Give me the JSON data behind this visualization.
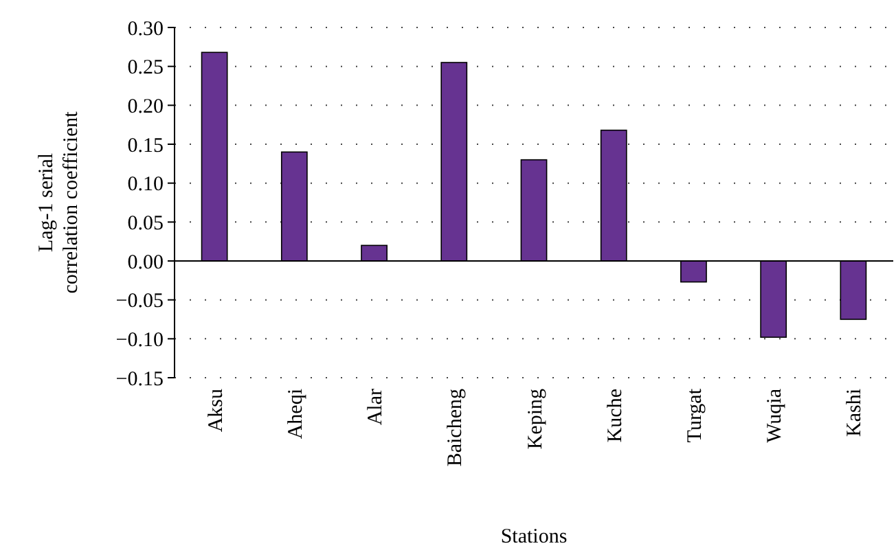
{
  "chart_data": {
    "type": "bar",
    "xlabel": "Stations",
    "ylabel": "Lag-1 serial correlation coefficient",
    "categories": [
      "Aksu",
      "Aheqi",
      "Alar",
      "Baicheng",
      "Keping",
      "Kuche",
      "Turgat",
      "Wuqia",
      "Kashi"
    ],
    "values": [
      0.268,
      0.14,
      0.02,
      0.255,
      0.13,
      0.168,
      -0.027,
      -0.098,
      -0.075
    ],
    "color": "#663391",
    "ylim": [
      -0.15,
      0.3
    ],
    "yticks": [
      {
        "value": -0.15,
        "label": "−0.15"
      },
      {
        "value": -0.1,
        "label": "−0.10"
      },
      {
        "value": -0.05,
        "label": "−0.05"
      },
      {
        "value": 0,
        "label": "0.00"
      },
      {
        "value": 0.05,
        "label": "0.05"
      },
      {
        "value": 0.1,
        "label": "0.10"
      },
      {
        "value": 0.15,
        "label": "0.15"
      },
      {
        "value": 0.2,
        "label": "0.20"
      },
      {
        "value": 0.25,
        "label": "0.25"
      },
      {
        "value": 0.3,
        "label": "0.30"
      }
    ],
    "grid": "y"
  }
}
